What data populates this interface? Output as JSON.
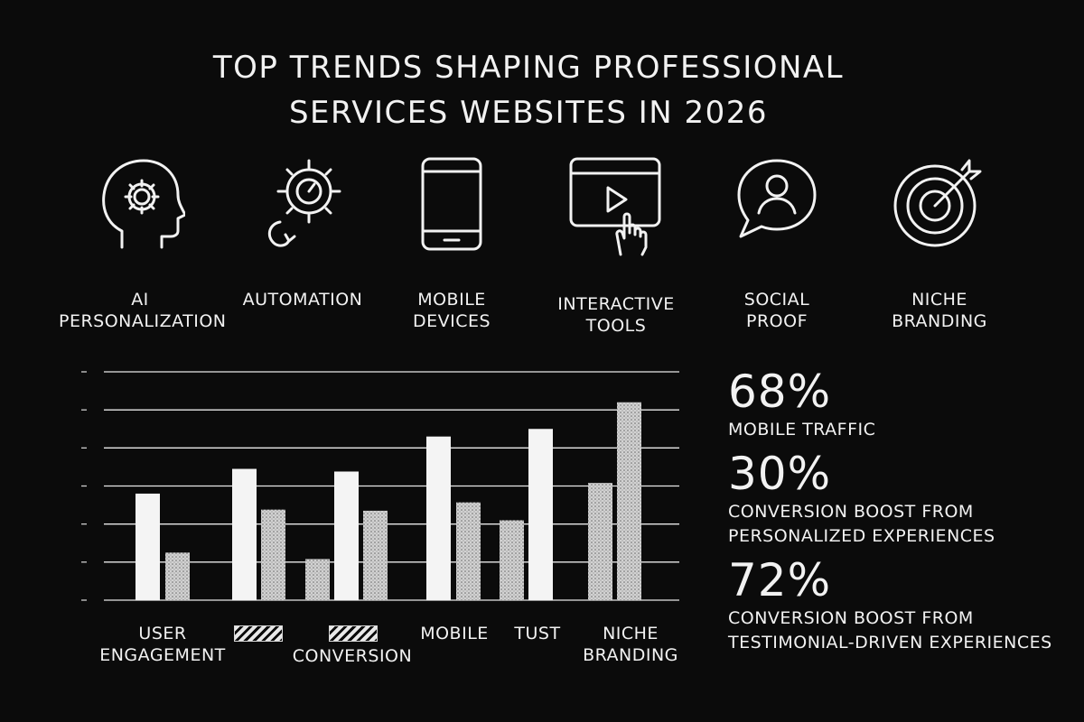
{
  "title": {
    "line1": "TOP TRENDS SHAPING PROFESSIONAL",
    "line2": "SERVICES WEBSITES IN 2026"
  },
  "trends": [
    {
      "label": "AI\nPERSONALIZATION",
      "icon": "head-gear-icon"
    },
    {
      "label": "AUTOMATION",
      "icon": "gear-cycle-icon"
    },
    {
      "label": "MOBILE\nDEVICES",
      "icon": "smartphone-icon"
    },
    {
      "label": "INTERACTIVE\nTOOLS",
      "icon": "video-tap-icon"
    },
    {
      "label": "SOCIAL\nPROOF",
      "icon": "chat-user-icon"
    },
    {
      "label": "NICHE\nBRANDING",
      "icon": "target-icon"
    }
  ],
  "chart_data": {
    "type": "bar",
    "categories": [
      "USER\nENGAGEMENT",
      "",
      "CONVERSION",
      "MOBILE",
      "TUST",
      "NICHE\nBRANDING"
    ],
    "hatched_category_boxes": [
      1,
      2
    ],
    "ylim": [
      0,
      6
    ],
    "grid": true,
    "bars": [
      {
        "group": 0,
        "style": "solid",
        "value": 2.8
      },
      {
        "group": 0,
        "style": "dotted",
        "value": 1.25
      },
      {
        "group": 1,
        "style": "solid",
        "value": 3.45
      },
      {
        "group": 1,
        "style": "dotted",
        "value": 2.38
      },
      {
        "group": 2,
        "style": "dotted",
        "value": 1.08
      },
      {
        "group": 2,
        "style": "solid",
        "value": 3.38
      },
      {
        "group": 2,
        "style": "dotted",
        "value": 2.35
      },
      {
        "group": 3,
        "style": "solid",
        "value": 4.3
      },
      {
        "group": 3,
        "style": "dotted",
        "value": 2.57
      },
      {
        "group": 4,
        "style": "dotted",
        "value": 2.1
      },
      {
        "group": 4,
        "style": "solid",
        "value": 4.5
      },
      {
        "group": 5,
        "style": "dotted",
        "value": 3.08
      },
      {
        "group": 5,
        "style": "dotted",
        "value": 5.2
      }
    ],
    "colors": {
      "solid": "#f4f4f4",
      "dotted": "#d2d2d2",
      "grid": "#e8e8e8",
      "background": "#0b0b0b"
    }
  },
  "stats": [
    {
      "value": "68%",
      "label": "MOBILE TRAFFIC"
    },
    {
      "value": "30%",
      "label": "CONVERSION BOOST FROM\nPERSONALIZED EXPERIENCES"
    },
    {
      "value": "72%",
      "label": "CONVERSION BOOST FROM\nTESTIMONIAL-DRIVEN EXPERIENCES"
    }
  ]
}
